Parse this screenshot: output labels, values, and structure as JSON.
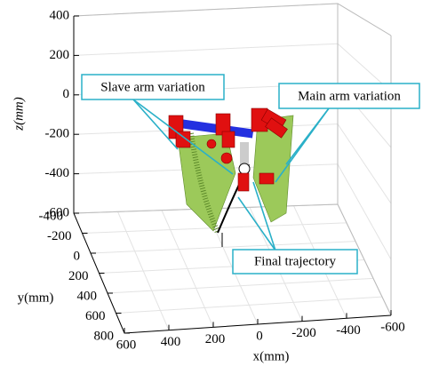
{
  "chart_data": {
    "type": "surface3d",
    "xlabel": "x(mm)",
    "ylabel": "y(mm)",
    "zlabel": "z(mm)",
    "xlim": [
      -600,
      600
    ],
    "xticks": [
      600,
      400,
      200,
      0,
      -200,
      -400,
      -600
    ],
    "ylim": [
      -400,
      800
    ],
    "yticks": [
      -400,
      -200,
      0,
      200,
      400,
      600,
      800
    ],
    "zlim": [
      -600,
      400
    ],
    "zticks": [
      400,
      200,
      0,
      -200,
      -400,
      -600
    ],
    "grid": true,
    "annotations": [
      "Slave arm variation",
      "Main arm variation",
      "Final trajectory"
    ]
  }
}
